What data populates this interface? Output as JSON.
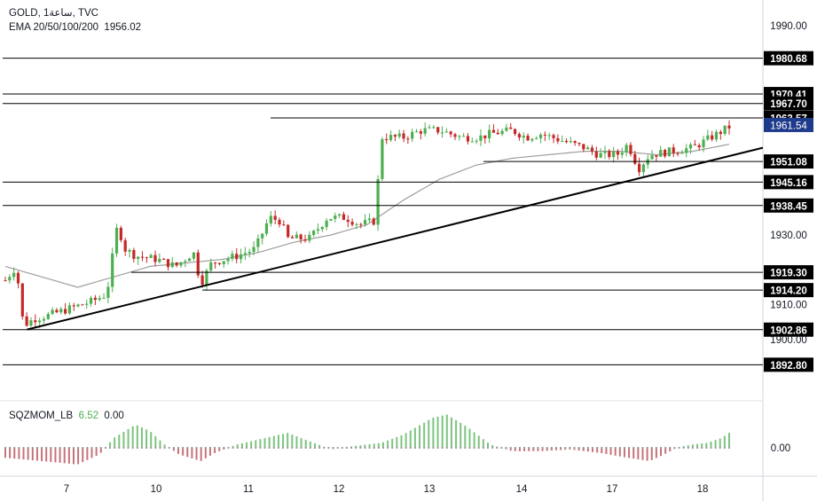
{
  "header": {
    "symbol": "GOLD",
    "timeframe": "1ساعة",
    "source": "TVC",
    "ema_label": "EMA 20/50/100/200",
    "ema_value": "1956.02"
  },
  "indicator": {
    "name": "SQZMOM_LB",
    "value1": "6.52",
    "value2": "0.00",
    "axis_label": "0.00"
  },
  "colors": {
    "bull": "#26a69a",
    "bear": "#ef5350",
    "bull_body": "#4caf50",
    "bear_body": "#c62828",
    "ema": "#9e9e9e",
    "level_line": "#000000",
    "last_price_bg": "#1e3a8a",
    "mom_pos": "#7cc47f",
    "mom_neg": "#c77179"
  },
  "chart_data": {
    "type": "candlestick",
    "ylim": [
      1888,
      1998
    ],
    "y_ticks": [
      "1990.00",
      "1930.00",
      "1910.00",
      "1900.00"
    ],
    "x_ticks": [
      "7",
      "10",
      "11",
      "12",
      "13",
      "14",
      "17",
      "18"
    ],
    "levels": [
      {
        "label": "1980.68",
        "value": 1980.68
      },
      {
        "label": "1970.41",
        "value": 1970.41
      },
      {
        "label": "1967.70",
        "value": 1967.7
      },
      {
        "label": "1963.57",
        "value": 1963.57
      },
      {
        "label": "1951.08",
        "value": 1951.08
      },
      {
        "label": "1945.16",
        "value": 1945.16
      },
      {
        "label": "1938.45",
        "value": 1938.45
      },
      {
        "label": "1919.30",
        "value": 1919.3
      },
      {
        "label": "1914.20",
        "value": 1914.2
      },
      {
        "label": "1902.86",
        "value": 1902.86
      },
      {
        "label": "1892.80",
        "value": 1892.8
      }
    ],
    "last_price": "1961.54",
    "trendline": [
      [
        0.03,
        1902.9
      ],
      [
        1.0,
        1954.0
      ]
    ],
    "price_anchors": [
      [
        0.0,
        1917
      ],
      [
        0.015,
        1921
      ],
      [
        0.025,
        1904
      ],
      [
        0.04,
        1906
      ],
      [
        0.06,
        1907
      ],
      [
        0.09,
        1909
      ],
      [
        0.12,
        1911
      ],
      [
        0.14,
        1913
      ],
      [
        0.155,
        1933
      ],
      [
        0.165,
        1926
      ],
      [
        0.18,
        1924
      ],
      [
        0.21,
        1923
      ],
      [
        0.235,
        1921
      ],
      [
        0.26,
        1925
      ],
      [
        0.27,
        1916
      ],
      [
        0.285,
        1922
      ],
      [
        0.32,
        1924
      ],
      [
        0.345,
        1926
      ],
      [
        0.365,
        1935
      ],
      [
        0.38,
        1934
      ],
      [
        0.39,
        1929
      ],
      [
        0.42,
        1929
      ],
      [
        0.445,
        1935
      ],
      [
        0.47,
        1935
      ],
      [
        0.49,
        1933
      ],
      [
        0.51,
        1934
      ],
      [
        0.52,
        1958
      ],
      [
        0.55,
        1958
      ],
      [
        0.575,
        1960
      ],
      [
        0.6,
        1960
      ],
      [
        0.63,
        1958
      ],
      [
        0.655,
        1958
      ],
      [
        0.67,
        1959
      ],
      [
        0.7,
        1960
      ],
      [
        0.72,
        1958
      ],
      [
        0.74,
        1959
      ],
      [
        0.77,
        1957
      ],
      [
        0.8,
        1955
      ],
      [
        0.82,
        1953
      ],
      [
        0.845,
        1953
      ],
      [
        0.86,
        1956
      ],
      [
        0.875,
        1949
      ],
      [
        0.89,
        1953
      ],
      [
        0.92,
        1954
      ],
      [
        0.95,
        1955
      ],
      [
        0.975,
        1958
      ],
      [
        1.0,
        1961
      ]
    ],
    "ema_anchors": [
      [
        0.0,
        1921
      ],
      [
        0.05,
        1918
      ],
      [
        0.1,
        1915
      ],
      [
        0.15,
        1918
      ],
      [
        0.2,
        1921
      ],
      [
        0.25,
        1922
      ],
      [
        0.3,
        1923
      ],
      [
        0.35,
        1925
      ],
      [
        0.4,
        1928
      ],
      [
        0.45,
        1930
      ],
      [
        0.5,
        1933
      ],
      [
        0.55,
        1940
      ],
      [
        0.6,
        1946
      ],
      [
        0.65,
        1950
      ],
      [
        0.7,
        1952
      ],
      [
        0.75,
        1953
      ],
      [
        0.8,
        1954
      ],
      [
        0.85,
        1954
      ],
      [
        0.9,
        1953
      ],
      [
        0.95,
        1954
      ],
      [
        1.0,
        1956
      ]
    ],
    "momentum_anchors": [
      [
        0.0,
        -6
      ],
      [
        0.05,
        -8
      ],
      [
        0.1,
        -10
      ],
      [
        0.13,
        -4
      ],
      [
        0.15,
        6
      ],
      [
        0.18,
        14
      ],
      [
        0.2,
        10
      ],
      [
        0.22,
        2
      ],
      [
        0.24,
        -4
      ],
      [
        0.27,
        -8
      ],
      [
        0.29,
        -3
      ],
      [
        0.32,
        2
      ],
      [
        0.36,
        6
      ],
      [
        0.39,
        9
      ],
      [
        0.42,
        4
      ],
      [
        0.45,
        -1
      ],
      [
        0.48,
        1
      ],
      [
        0.52,
        3
      ],
      [
        0.55,
        8
      ],
      [
        0.59,
        18
      ],
      [
        0.61,
        20
      ],
      [
        0.64,
        12
      ],
      [
        0.67,
        2
      ],
      [
        0.7,
        -2
      ],
      [
        0.74,
        -2
      ],
      [
        0.78,
        -1
      ],
      [
        0.82,
        -3
      ],
      [
        0.86,
        -6
      ],
      [
        0.89,
        -8
      ],
      [
        0.91,
        -4
      ],
      [
        0.93,
        0.5
      ],
      [
        0.95,
        2
      ],
      [
        0.97,
        3
      ],
      [
        0.99,
        6
      ],
      [
        1.0,
        9
      ]
    ],
    "momentum_range": [
      -16,
      24
    ]
  }
}
